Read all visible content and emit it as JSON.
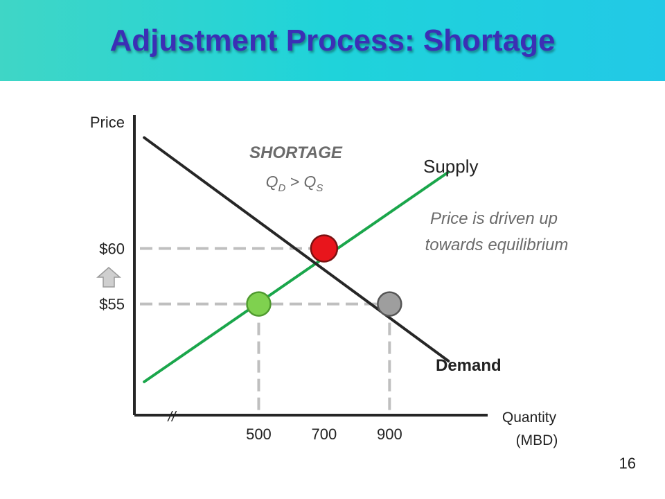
{
  "slide": {
    "title": "Adjustment Process: Shortage",
    "page_number": "16"
  },
  "colors": {
    "banner": "#1fd3da",
    "title": "#3b2fb5",
    "supply": "#1aa64b",
    "demand": "#262626",
    "guide": "#bfbfbf",
    "equilibrium_point": "#e8151c",
    "qs_point": "#7fd14f",
    "qd_point": "#9e9e9e",
    "annotation": "#6b6b6b"
  },
  "chart_data": {
    "type": "line",
    "xlabel": "Quantity",
    "xlabel_unit": "(MBD)",
    "ylabel": "Price",
    "x_ticks": [
      "500",
      "700",
      "900"
    ],
    "y_ticks": [
      "$55",
      "$60"
    ],
    "axis_break": "//",
    "series": [
      {
        "name": "Supply",
        "x": [
          150,
          1080
        ],
        "y": [
          48,
          66.87
        ]
      },
      {
        "name": "Demand",
        "x": [
          150,
          1080
        ],
        "y": [
          69.97,
          49.87
        ]
      }
    ],
    "points": [
      {
        "role": "equilibrium",
        "x": 700,
        "y": 60
      },
      {
        "role": "quantity-supplied",
        "x": 500,
        "y": 55
      },
      {
        "role": "quantity-demanded",
        "x": 900,
        "y": 55
      }
    ],
    "xlim": [
      120,
      1200
    ],
    "ylim": [
      45,
      72
    ],
    "annotations": {
      "shortage_heading": "SHORTAGE",
      "shortage_q": "Q",
      "shortage_sub_d": "D",
      "shortage_op": " > Q",
      "shortage_sub_s": "S",
      "note_line1": "Price is driven up",
      "note_line2": "towards equilibrium"
    },
    "grid": false
  }
}
